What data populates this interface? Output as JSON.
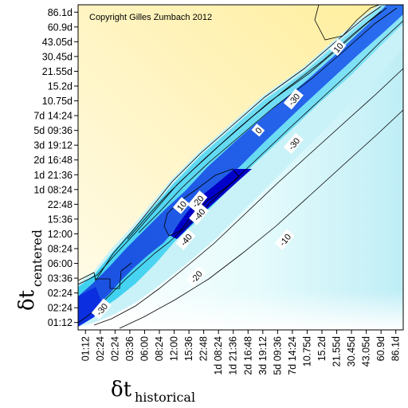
{
  "chart_data": {
    "type": "heatmap",
    "title": "",
    "copyright": "Copyright Gilles Zumbach 2012",
    "xlabel": {
      "symbol": "δt",
      "subscript": "historical"
    },
    "ylabel": {
      "symbol": "δt",
      "subscript": "centered"
    },
    "x_ticks": [
      "01:12",
      "02:24",
      "02:24",
      "03:36",
      "06:00",
      "08:24",
      "12:00",
      "15:36",
      "22:48",
      "1d 08:24",
      "1d 21:36",
      "2d 16:48",
      "3d 19:12",
      "5d 09:36",
      "7d 14:24",
      "10.75d",
      "15.2d",
      "21.55d",
      "30.45d",
      "43.05d",
      "60.9d",
      "86.1d"
    ],
    "y_ticks": [
      "01:12",
      "02:24",
      "02:24",
      "03:36",
      "06:00",
      "08:24",
      "12:00",
      "15:36",
      "22:48",
      "1d 08:24",
      "1d 21:36",
      "2d 16:48",
      "3d 19:12",
      "5d 09:36",
      "7d 14:24",
      "10.75d",
      "15.2d",
      "21.55d",
      "30.45d",
      "43.05d",
      "60.9d",
      "86.1d"
    ],
    "contour_levels": [
      10,
      0,
      -10,
      -20,
      -30,
      -40
    ],
    "contour_labels": [
      {
        "text": "10",
        "x_index": 17.6,
        "y_index": 19.1
      },
      {
        "text": "-30",
        "x_index": 14.6,
        "y_index": 15.6
      },
      {
        "text": "0",
        "x_index": 12.2,
        "y_index": 13.5
      },
      {
        "text": "-30",
        "x_index": 14.6,
        "y_index": 12.6
      },
      {
        "text": "10",
        "x_index": 7.0,
        "y_index": 8.4
      },
      {
        "text": "-20",
        "x_index": 8.1,
        "y_index": 8.7
      },
      {
        "text": "-40",
        "x_index": 8.2,
        "y_index": 7.8
      },
      {
        "text": "-40",
        "x_index": 7.3,
        "y_index": 6.1
      },
      {
        "text": "-10",
        "x_index": 14.0,
        "y_index": 6.1
      },
      {
        "text": "-20",
        "x_index": 8.0,
        "y_index": 3.6
      },
      {
        "text": "-30",
        "x_index": 1.6,
        "y_index": 1.4
      }
    ],
    "colorscale": {
      "positive": "#ffeea0",
      "zero": "#ffffff",
      "weak_negative": "#c8f4fa",
      "mid_negative": "#18c4ec",
      "strong_negative": "#0000d0"
    },
    "grid": false,
    "legend": "none"
  }
}
